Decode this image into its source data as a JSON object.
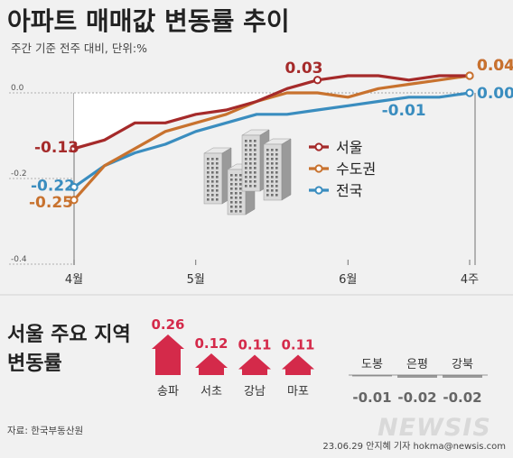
{
  "header": {
    "title": "아파트 매매값 변동률 추이",
    "subtitle": "주간 기준 전주 대비, 단위:%"
  },
  "chart_data": [
    {
      "type": "line",
      "title": "아파트 매매값 변동률 추이",
      "subtitle": "주간 기준 전주 대비, 단위:%",
      "x_tick_labels": [
        "4월",
        "5월",
        "6월",
        "4주"
      ],
      "y_ticks": [
        0.0,
        -0.2,
        -0.4
      ],
      "y_tick_labels": [
        "0.0",
        "-0.2",
        "-0.4"
      ],
      "ylim": [
        -0.4,
        0.05
      ],
      "grid": false,
      "legend_position": "center",
      "series": [
        {
          "name": "서울",
          "color": "#a52a2a",
          "values": [
            -0.13,
            -0.11,
            -0.07,
            -0.07,
            -0.05,
            -0.04,
            -0.02,
            0.01,
            0.03,
            0.04,
            0.04,
            0.03,
            0.04,
            0.04
          ],
          "labels": [
            {
              "index": 0,
              "text": "-0.13"
            },
            {
              "index": 8,
              "text": "0.03"
            },
            {
              "index": 13,
              "text": "0.04"
            }
          ]
        },
        {
          "name": "수도권",
          "color": "#c8722e",
          "values": [
            -0.25,
            -0.17,
            -0.13,
            -0.09,
            -0.07,
            -0.05,
            -0.02,
            0.0,
            0.0,
            -0.01,
            0.01,
            0.02,
            0.03,
            0.04
          ],
          "labels": [
            {
              "index": 0,
              "text": "-0.25"
            },
            {
              "index": 13,
              "text": "0.04"
            }
          ]
        },
        {
          "name": "전국",
          "color": "#3a8dbf",
          "values": [
            -0.22,
            -0.17,
            -0.14,
            -0.12,
            -0.09,
            -0.07,
            -0.05,
            -0.05,
            -0.04,
            -0.03,
            -0.02,
            -0.01,
            -0.01,
            0.0
          ],
          "labels": [
            {
              "index": 0,
              "text": "-0.22"
            },
            {
              "index": 11,
              "text": "-0.01"
            },
            {
              "index": 13,
              "text": "0.00"
            }
          ]
        }
      ]
    },
    {
      "type": "bar",
      "title": "서울 주요 지역 변동률",
      "categories": [
        "송파",
        "서초",
        "강남",
        "마포",
        "도봉",
        "은평",
        "강북"
      ],
      "values": [
        0.26,
        0.12,
        0.11,
        0.11,
        -0.01,
        -0.02,
        -0.02
      ],
      "value_labels": [
        "0.26",
        "0.12",
        "0.11",
        "0.11",
        "-0.01",
        "-0.02",
        "-0.02"
      ],
      "positive_color": "#d42a4a",
      "negative_color": "#9a9a9a"
    }
  ],
  "footer": {
    "source": "자료: 한국부동산원",
    "credit": "23.06.29 안지혜 기자 hokma@newsis.com",
    "logo": "NEWSIS"
  },
  "colors": {
    "background": "#f1f1f1",
    "title": "#222222"
  }
}
